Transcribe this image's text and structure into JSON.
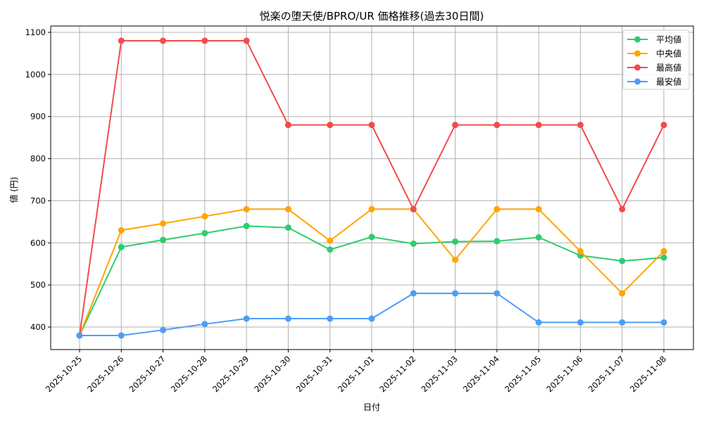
{
  "chart_data": {
    "type": "line",
    "title": "悦楽の堕天使/BPRO/UR 価格推移(過去30日間)",
    "xlabel": "日付",
    "ylabel": "値 (円)",
    "x": [
      "2025-10-25",
      "2025-10-26",
      "2025-10-27",
      "2025-10-28",
      "2025-10-29",
      "2025-10-30",
      "2025-10-31",
      "2025-11-01",
      "2025-11-02",
      "2025-11-03",
      "2025-11-04",
      "2025-11-05",
      "2025-11-06",
      "2025-11-07",
      "2025-11-08"
    ],
    "yticks": [
      400,
      500,
      600,
      700,
      800,
      900,
      1000,
      1100
    ],
    "ylim": [
      345,
      1118
    ],
    "grid": true,
    "legend_position": "upper right",
    "series": [
      {
        "name": "平均値",
        "color": "#2ecc71",
        "values": [
          380,
          590,
          607,
          623,
          640,
          636,
          584,
          614,
          598,
          603,
          604,
          613,
          570,
          557,
          565
        ]
      },
      {
        "name": "中央値",
        "color": "#ffa500",
        "values": [
          380,
          630,
          646,
          663,
          680,
          680,
          605,
          680,
          680,
          560,
          680,
          680,
          580,
          480,
          580
        ]
      },
      {
        "name": "最高値",
        "color": "#f44b4b",
        "values": [
          380,
          1080,
          1080,
          1080,
          1080,
          880,
          880,
          880,
          680,
          880,
          880,
          880,
          880,
          680,
          880
        ]
      },
      {
        "name": "最安値",
        "color": "#4d9df8",
        "values": [
          380,
          380,
          393,
          407,
          420,
          420,
          420,
          420,
          480,
          480,
          480,
          411,
          411,
          411,
          411
        ]
      }
    ]
  }
}
